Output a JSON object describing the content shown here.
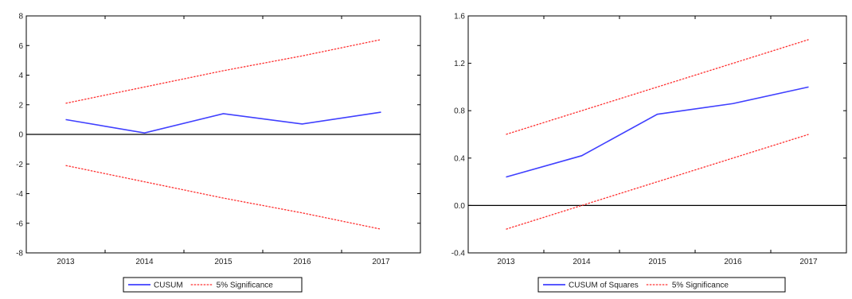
{
  "chart_data": [
    {
      "type": "line",
      "categories": [
        "2013",
        "2014",
        "2015",
        "2016",
        "2017"
      ],
      "ylim": [
        -8,
        8
      ],
      "yticks": [
        "8",
        "6",
        "4",
        "2",
        "0",
        "-2",
        "-4",
        "-6",
        "-8"
      ],
      "grid": false,
      "zero_line": true,
      "legend_position": "bottom",
      "series": [
        {
          "name": "CUSUM",
          "values": [
            1.0,
            0.1,
            1.4,
            0.7,
            1.5
          ],
          "color": "#4040ff",
          "style": "solid"
        },
        {
          "name": "5% Significance",
          "values": [
            2.1,
            3.2,
            4.3,
            5.3,
            6.4
          ],
          "color": "#ff3030",
          "style": "dashed"
        },
        {
          "values": [
            -2.1,
            -3.2,
            -4.3,
            -5.3,
            -6.4
          ],
          "color": "#ff3030",
          "style": "dashed"
        }
      ]
    },
    {
      "type": "line",
      "categories": [
        "2013",
        "2014",
        "2015",
        "2016",
        "2017"
      ],
      "ylim": [
        -0.4,
        1.6
      ],
      "yticks": [
        "1.6",
        "1.2",
        "0.8",
        "0.4",
        "0.0",
        "-0.4"
      ],
      "grid": false,
      "zero_line": true,
      "legend_position": "bottom",
      "series": [
        {
          "name": "CUSUM of Squares",
          "values": [
            0.24,
            0.42,
            0.77,
            0.86,
            1.0
          ],
          "color": "#4040ff",
          "style": "solid"
        },
        {
          "name": "5% Significance",
          "values": [
            0.6,
            0.8,
            1.0,
            1.2,
            1.4
          ],
          "color": "#ff3030",
          "style": "dashed"
        },
        {
          "values": [
            -0.2,
            0.0,
            0.2,
            0.4,
            0.6
          ],
          "color": "#ff3030",
          "style": "dashed"
        }
      ]
    }
  ]
}
